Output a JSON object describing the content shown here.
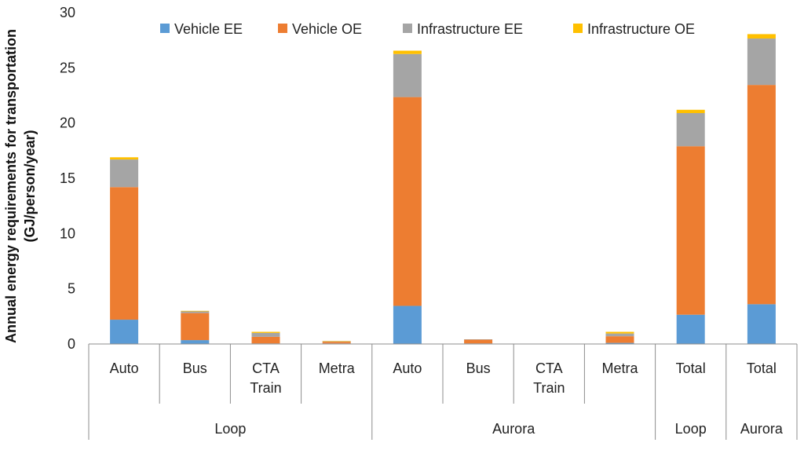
{
  "chart_data": {
    "type": "bar",
    "stacked": true,
    "title": "",
    "xlabel": "",
    "ylabel_lines": [
      "Annual energy requirements for transportation",
      "(GJ/person/year)"
    ],
    "ylim": [
      0,
      30
    ],
    "yticks": [
      0,
      5,
      10,
      15,
      20,
      25,
      30
    ],
    "legend_position": "top",
    "categories": [
      {
        "lines": [
          "Auto"
        ]
      },
      {
        "lines": [
          "Bus"
        ]
      },
      {
        "lines": [
          "CTA",
          "Train"
        ]
      },
      {
        "lines": [
          "Metra"
        ]
      },
      {
        "lines": [
          "Auto"
        ]
      },
      {
        "lines": [
          "Bus"
        ]
      },
      {
        "lines": [
          "CTA",
          "Train"
        ]
      },
      {
        "lines": [
          "Metra"
        ]
      },
      {
        "lines": [
          "Total"
        ]
      },
      {
        "lines": [
          "Total"
        ]
      }
    ],
    "groups": [
      {
        "label": "Loop",
        "start": 0,
        "end": 3
      },
      {
        "label": "Aurora",
        "start": 4,
        "end": 7
      },
      {
        "label": "Loop",
        "start": 8,
        "end": 8
      },
      {
        "label": "Aurora",
        "start": 9,
        "end": 9
      }
    ],
    "series": [
      {
        "name": "Vehicle EE",
        "color": "#5B9BD5",
        "values": [
          2.2,
          0.35,
          0.05,
          0.05,
          3.45,
          0.05,
          0.0,
          0.1,
          2.65,
          3.6
        ]
      },
      {
        "name": "Vehicle OE",
        "color": "#ED7D31",
        "values": [
          12.0,
          2.45,
          0.6,
          0.15,
          18.9,
          0.35,
          0.0,
          0.6,
          15.25,
          19.85
        ]
      },
      {
        "name": "Infrastructure EE",
        "color": "#A5A5A5",
        "values": [
          2.5,
          0.15,
          0.35,
          0.05,
          3.9,
          0.02,
          0.0,
          0.25,
          3.0,
          4.2
        ]
      },
      {
        "name": "Infrastructure OE",
        "color": "#FFC000",
        "values": [
          0.2,
          0.05,
          0.1,
          0.02,
          0.3,
          0.0,
          0.0,
          0.15,
          0.3,
          0.4
        ]
      }
    ]
  }
}
